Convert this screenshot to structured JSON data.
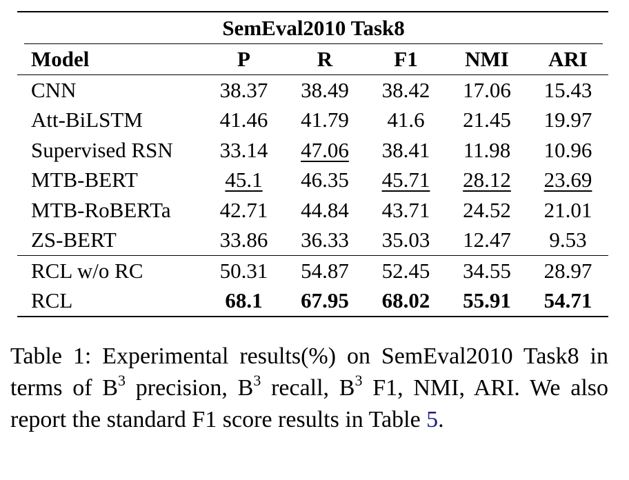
{
  "table": {
    "title": "SemEval2010 Task8",
    "header": [
      "Model",
      "P",
      "R",
      "F1",
      "NMI",
      "ARI"
    ],
    "rows": [
      [
        "CNN",
        "38.37",
        "38.49",
        "38.42",
        "17.06",
        "15.43"
      ],
      [
        "Att-BiLSTM",
        "41.46",
        "41.79",
        "41.6",
        "21.45",
        "19.97"
      ],
      [
        "Supervised RSN",
        "33.14",
        "47.06",
        "38.41",
        "11.98",
        "10.96"
      ],
      [
        "MTB-BERT",
        "45.1",
        "46.35",
        "45.71",
        "28.12",
        "23.69"
      ],
      [
        "MTB-RoBERTa",
        "42.71",
        "44.84",
        "43.71",
        "24.52",
        "21.01"
      ],
      [
        "ZS-BERT",
        "33.86",
        "36.33",
        "35.03",
        "12.47",
        "9.53"
      ],
      [
        "RCL w/o RC",
        "50.31",
        "54.87",
        "52.45",
        "34.55",
        "28.97"
      ],
      [
        "RCL",
        "68.1",
        "67.95",
        "68.02",
        "55.91",
        "54.71"
      ]
    ]
  },
  "caption": [
    "Table 1:  Experimental results(%) on SemEval2010 Task8 in terms of B",
    "3",
    " precision, B",
    "3",
    " recall, B",
    "3",
    " F1, NMI, ARI. We also report the standard F1 score results in Table ",
    "5",
    "."
  ]
}
